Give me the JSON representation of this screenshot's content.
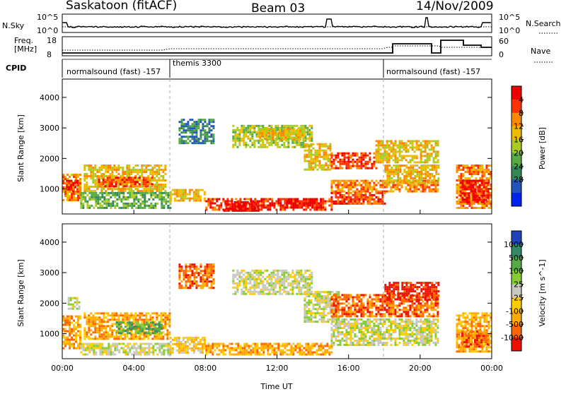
{
  "header": {
    "title": "Saskatoon (fitACF)",
    "beam": "Beam 03",
    "date": "14/Nov/2009"
  },
  "top_panels": {
    "nsky": {
      "label": "N.Sky",
      "ticks": [
        "10^5",
        "10^0"
      ]
    },
    "nsearch": {
      "label": "N.Search",
      "ticks": [
        "10^5",
        "10^0"
      ]
    },
    "freq": {
      "label_line1": "Freq.",
      "label_line2": "[MHz]",
      "ticks": [
        "18",
        "8"
      ]
    },
    "nave": {
      "label": "Nave",
      "ticks": [
        "60",
        "0"
      ]
    },
    "cpid": {
      "label": "CPID",
      "segments": [
        {
          "name": "normalsound (fast) -157",
          "start_h": 0,
          "end_h": 6
        },
        {
          "name": "themis 3300",
          "start_h": 6,
          "end_h": 18
        },
        {
          "name": "normalsound (fast) -157",
          "start_h": 18,
          "end_h": 24
        }
      ]
    }
  },
  "chart_data": [
    {
      "type": "heatmap",
      "name": "power-panel",
      "ylabel": "Slant Range [km]",
      "x_range_h": [
        0,
        24
      ],
      "ylim": [
        180,
        4600
      ],
      "yticks": [
        "1000",
        "2000",
        "3000",
        "4000"
      ],
      "colorbar": {
        "label": "Power [dB]",
        "tick_labels": [
          "4",
          "8",
          "12",
          "16",
          "20",
          "24",
          "28"
        ],
        "colors": [
          "#0022ee",
          "#2255bb",
          "#338855",
          "#55aa44",
          "#aacc22",
          "#eebb00",
          "#ff8800",
          "#ff3300",
          "#ee0000"
        ]
      },
      "regions": [
        {
          "h0": 0.0,
          "h1": 1.0,
          "r0": 600,
          "r1": 1500,
          "c": 6
        },
        {
          "h0": 0.2,
          "h1": 0.8,
          "r0": 900,
          "r1": 1300,
          "c": 8
        },
        {
          "h0": 1.2,
          "h1": 5.8,
          "r0": 900,
          "r1": 1800,
          "c": 5
        },
        {
          "h0": 2.0,
          "h1": 5.0,
          "r0": 1100,
          "r1": 1400,
          "c": 7
        },
        {
          "h0": 1.0,
          "h1": 6.0,
          "r0": 400,
          "r1": 900,
          "c": 3
        },
        {
          "h0": 6.0,
          "h1": 8.0,
          "r0": 600,
          "r1": 1000,
          "c": 5
        },
        {
          "h0": 8.0,
          "h1": 15.0,
          "r0": 300,
          "r1": 700,
          "c": 7
        },
        {
          "h0": 9.0,
          "h1": 11.0,
          "r0": 300,
          "r1": 600,
          "c": 8
        },
        {
          "h0": 12.5,
          "h1": 14.5,
          "r0": 400,
          "r1": 700,
          "c": 8
        },
        {
          "h0": 6.5,
          "h1": 8.5,
          "r0": 2500,
          "r1": 3300,
          "c": 2
        },
        {
          "h0": 9.5,
          "h1": 14.0,
          "r0": 2400,
          "r1": 3100,
          "c": 4
        },
        {
          "h0": 11.0,
          "h1": 13.5,
          "r0": 2600,
          "r1": 3000,
          "c": 5
        },
        {
          "h0": 13.5,
          "h1": 15.0,
          "r0": 1600,
          "r1": 2500,
          "c": 5
        },
        {
          "h0": 15.0,
          "h1": 17.5,
          "r0": 1700,
          "r1": 2200,
          "c": 7
        },
        {
          "h0": 15.0,
          "h1": 21.0,
          "r0": 900,
          "r1": 1300,
          "c": 6
        },
        {
          "h0": 17.5,
          "h1": 21.0,
          "r0": 1900,
          "r1": 2600,
          "c": 5
        },
        {
          "h0": 18.0,
          "h1": 21.0,
          "r0": 1200,
          "r1": 1800,
          "c": 5
        },
        {
          "h0": 15.0,
          "h1": 18.0,
          "r0": 500,
          "r1": 900,
          "c": 7
        },
        {
          "h0": 22.0,
          "h1": 24.0,
          "r0": 400,
          "r1": 1800,
          "c": 6
        },
        {
          "h0": 22.2,
          "h1": 23.8,
          "r0": 600,
          "r1": 1300,
          "c": 8
        }
      ]
    },
    {
      "type": "heatmap",
      "name": "velocity-panel",
      "ylabel": "Slant Range [km]",
      "xlabel": "Time UT",
      "x_range_h": [
        0,
        24
      ],
      "ylim": [
        180,
        4600
      ],
      "yticks": [
        "1000",
        "2000",
        "3000",
        "4000"
      ],
      "xticks": [
        "00:00",
        "04:00",
        "08:00",
        "12:00",
        "16:00",
        "20:00",
        "00:00"
      ],
      "colorbar": {
        "label": "Velocity [m s^-1]",
        "tick_labels": [
          "1000",
          "500",
          "100",
          "25",
          "-25",
          "-100",
          "-500",
          "-1000"
        ],
        "colors": [
          "#2244bb",
          "#338866",
          "#55aa44",
          "#88cc33",
          "#c8c8c0",
          "#ffcc00",
          "#ffaa00",
          "#ff6600",
          "#ee1100"
        ]
      },
      "regions": [
        {
          "h0": 0.0,
          "h1": 1.0,
          "r0": 500,
          "r1": 1600,
          "c": 6
        },
        {
          "h0": 0.3,
          "h1": 0.9,
          "r0": 1800,
          "r1": 2200,
          "c": 4
        },
        {
          "h0": 1.2,
          "h1": 6.0,
          "r0": 800,
          "r1": 1700,
          "c": 6
        },
        {
          "h0": 3.0,
          "h1": 5.5,
          "r0": 1000,
          "r1": 1400,
          "c": 2
        },
        {
          "h0": 1.0,
          "h1": 6.0,
          "r0": 300,
          "r1": 700,
          "c": 4
        },
        {
          "h0": 6.0,
          "h1": 8.0,
          "r0": 400,
          "r1": 900,
          "c": 5
        },
        {
          "h0": 8.0,
          "h1": 15.0,
          "r0": 300,
          "r1": 700,
          "c": 6
        },
        {
          "h0": 6.5,
          "h1": 8.5,
          "r0": 2500,
          "r1": 3300,
          "c": 7
        },
        {
          "h0": 9.5,
          "h1": 14.0,
          "r0": 2300,
          "r1": 3100,
          "c": 4
        },
        {
          "h0": 13.5,
          "h1": 15.5,
          "r0": 1400,
          "r1": 2400,
          "c": 4
        },
        {
          "h0": 15.0,
          "h1": 21.0,
          "r0": 1600,
          "r1": 2300,
          "c": 7
        },
        {
          "h0": 18.0,
          "h1": 21.0,
          "r0": 2100,
          "r1": 2700,
          "c": 8
        },
        {
          "h0": 15.0,
          "h1": 21.0,
          "r0": 600,
          "r1": 1500,
          "c": 4
        },
        {
          "h0": 22.0,
          "h1": 24.0,
          "r0": 400,
          "r1": 1700,
          "c": 6
        },
        {
          "h0": 22.3,
          "h1": 23.8,
          "r0": 600,
          "r1": 1100,
          "c": 7
        }
      ]
    }
  ],
  "gap_hours": [
    [
      21.1,
      22.0
    ]
  ],
  "dashed_time_markers_h": [
    6,
    18
  ]
}
